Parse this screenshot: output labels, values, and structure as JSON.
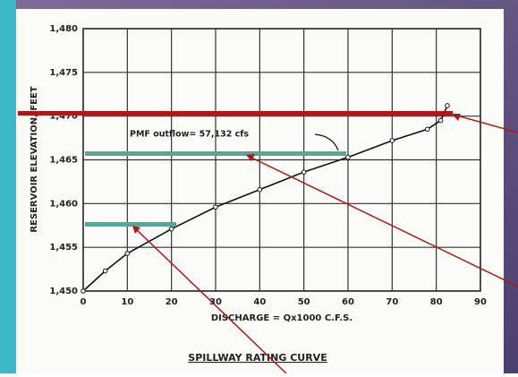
{
  "chart_data": {
    "type": "line",
    "title": "SPILLWAY RATING CURVE",
    "x_label": "DISCHARGE = Qx1000 C.F.S.",
    "y_label": "RESERVOIR ELEVATION, FEET",
    "annotation": "PMF outflow= 57,132 cfs",
    "x": [
      0,
      5,
      10,
      20,
      30,
      40,
      50,
      60,
      70,
      78,
      81,
      82.5
    ],
    "values": [
      1450,
      1452.3,
      1454.3,
      1457.1,
      1459.6,
      1461.6,
      1463.6,
      1465.3,
      1467.2,
      1468.5,
      1469.5,
      1471.2
    ],
    "color": "#111111",
    "xlim": [
      0,
      90
    ],
    "xticks": [
      0,
      10,
      20,
      30,
      40,
      50,
      60,
      70,
      80,
      90
    ],
    "ylim": [
      1450,
      1480
    ],
    "yticks": [
      {
        "value": 1450,
        "label": "1,450"
      },
      {
        "value": 1455,
        "label": "1,455"
      },
      {
        "value": 1460,
        "label": "1,460"
      },
      {
        "value": 1465,
        "label": "1,465"
      },
      {
        "value": 1470,
        "label": "1,470"
      },
      {
        "value": 1475,
        "label": "1,475"
      },
      {
        "value": 1480,
        "label": "1,480"
      }
    ],
    "grid": true
  }
}
